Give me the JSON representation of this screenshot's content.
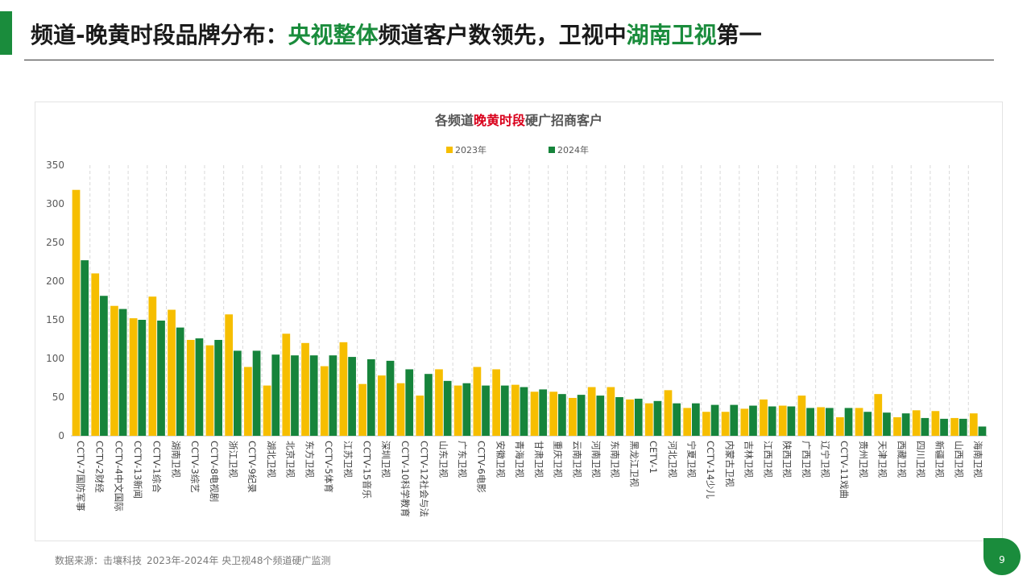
{
  "header": {
    "title_part1": "频道-晚黄时段品牌分布：",
    "title_hl1": "央视整体",
    "title_part2": "频道客户数领先，卫视中",
    "title_hl2": "湖南卫视",
    "title_part3": "第一"
  },
  "colors": {
    "accent": "#1a8c3c",
    "series_2023": "#f6be00",
    "series_2024": "#16843b",
    "chart_title_highlight": "#d9001b"
  },
  "chart_data": {
    "type": "bar",
    "title_prefix": "各频道",
    "title_highlight": "晚黄时段",
    "title_suffix": "硬广招商客户",
    "legend_position": "top-center",
    "grid": "vertical-dashed",
    "ylim": [
      0,
      350
    ],
    "yticks": [
      0,
      50,
      100,
      150,
      200,
      250,
      300,
      350
    ],
    "categories": [
      "CCTV-7国防军事",
      "CCTV-2财经",
      "CCTV-4中文国际",
      "CCTV-13新闻",
      "CCTV-1综合",
      "湖南卫视",
      "CCTV-3综艺",
      "CCTV-8电视剧",
      "浙江卫视",
      "CCTV-9纪录",
      "湖北卫视",
      "北京卫视",
      "东方卫视",
      "CCTV-5体育",
      "江苏卫视",
      "CCTV-15音乐",
      "深圳卫视",
      "CCTV-10科学教育",
      "CCTV-12社会与法",
      "山东卫视",
      "广东卫视",
      "CCTV-6电影",
      "安徽卫视",
      "青海卫视",
      "甘肃卫视",
      "重庆卫视",
      "云南卫视",
      "河南卫视",
      "东南卫视",
      "黑龙江卫视",
      "CETV-1",
      "河北卫视",
      "宁夏卫视",
      "CCTV-14少儿",
      "内蒙古卫视",
      "吉林卫视",
      "江西卫视",
      "陕西卫视",
      "广西卫视",
      "辽宁卫视",
      "CCTV-11戏曲",
      "贵州卫视",
      "天津卫视",
      "西藏卫视",
      "四川卫视",
      "新疆卫视",
      "山西卫视",
      "海南卫视"
    ],
    "series": [
      {
        "name": "2023年",
        "values": [
          318,
          210,
          168,
          152,
          180,
          163,
          124,
          117,
          157,
          89,
          65,
          132,
          120,
          90,
          121,
          67,
          78,
          68,
          52,
          86,
          65,
          89,
          86,
          66,
          57,
          57,
          49,
          63,
          63,
          47,
          42,
          59,
          36,
          31,
          31,
          35,
          47,
          39,
          52,
          37,
          24,
          36,
          54,
          24,
          33,
          32,
          23,
          29
        ]
      },
      {
        "name": "2024年",
        "values": [
          227,
          181,
          164,
          150,
          149,
          140,
          126,
          124,
          110,
          110,
          105,
          104,
          104,
          104,
          102,
          99,
          97,
          86,
          80,
          71,
          68,
          65,
          65,
          63,
          60,
          54,
          53,
          52,
          50,
          48,
          45,
          42,
          42,
          40,
          40,
          39,
          38,
          38,
          36,
          36,
          36,
          31,
          30,
          29,
          23,
          22,
          22,
          12
        ]
      }
    ]
  },
  "footer": {
    "source_label": "数据来源：击壤科技",
    "source_detail": "2023年-2024年 央卫视48个频道硬广监测"
  },
  "page_number": "9"
}
